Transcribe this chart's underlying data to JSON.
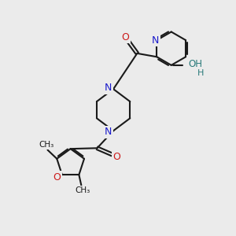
{
  "background_color": "#ebebeb",
  "bond_color": "#1a1a1a",
  "N_color": "#1a1acc",
  "O_color": "#cc1a1a",
  "OH_color": "#2a7a7a",
  "H_color": "#2a7a7a",
  "figsize": [
    3.0,
    3.0
  ],
  "dpi": 100,
  "xlim": [
    0,
    10
  ],
  "ylim": [
    0,
    10
  ]
}
